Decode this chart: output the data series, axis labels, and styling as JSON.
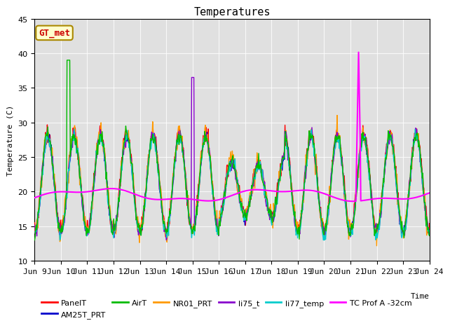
{
  "title": "Temperatures",
  "xlabel": "Time",
  "ylabel": "Temperature (C)",
  "ylim": [
    10,
    45
  ],
  "x_tick_labels": [
    "Jun 9",
    "Jun 10",
    "Jun 11",
    "Jun 12",
    "Jun 13",
    "Jun 14",
    "Jun 15",
    "Jun 16",
    "Jun 17",
    "Jun 18",
    "Jun 19",
    "Jun 20",
    "Jun 21",
    "Jun 22",
    "Jun 23",
    "Jun 24"
  ],
  "annotation_text": "GT_met",
  "annotation_color": "#cc0000",
  "annotation_bg": "#ffffcc",
  "annotation_edge": "#aa8800",
  "background_color": "#e0e0e0",
  "series_colors": {
    "PanelT": "#ff0000",
    "AM25T_PRT": "#0000cc",
    "AirT": "#00bb00",
    "NR01_PRT": "#ff9900",
    "li75_t": "#8800cc",
    "li77_temp": "#00cccc",
    "TC Prof A -32cm": "#ff00ff"
  },
  "legend_row1": [
    "PanelT",
    "AM25T_PRT",
    "AirT",
    "NR01_PRT",
    "li75_t",
    "li77_temp"
  ],
  "legend_row2": [
    "TC Prof A -32cm"
  ]
}
